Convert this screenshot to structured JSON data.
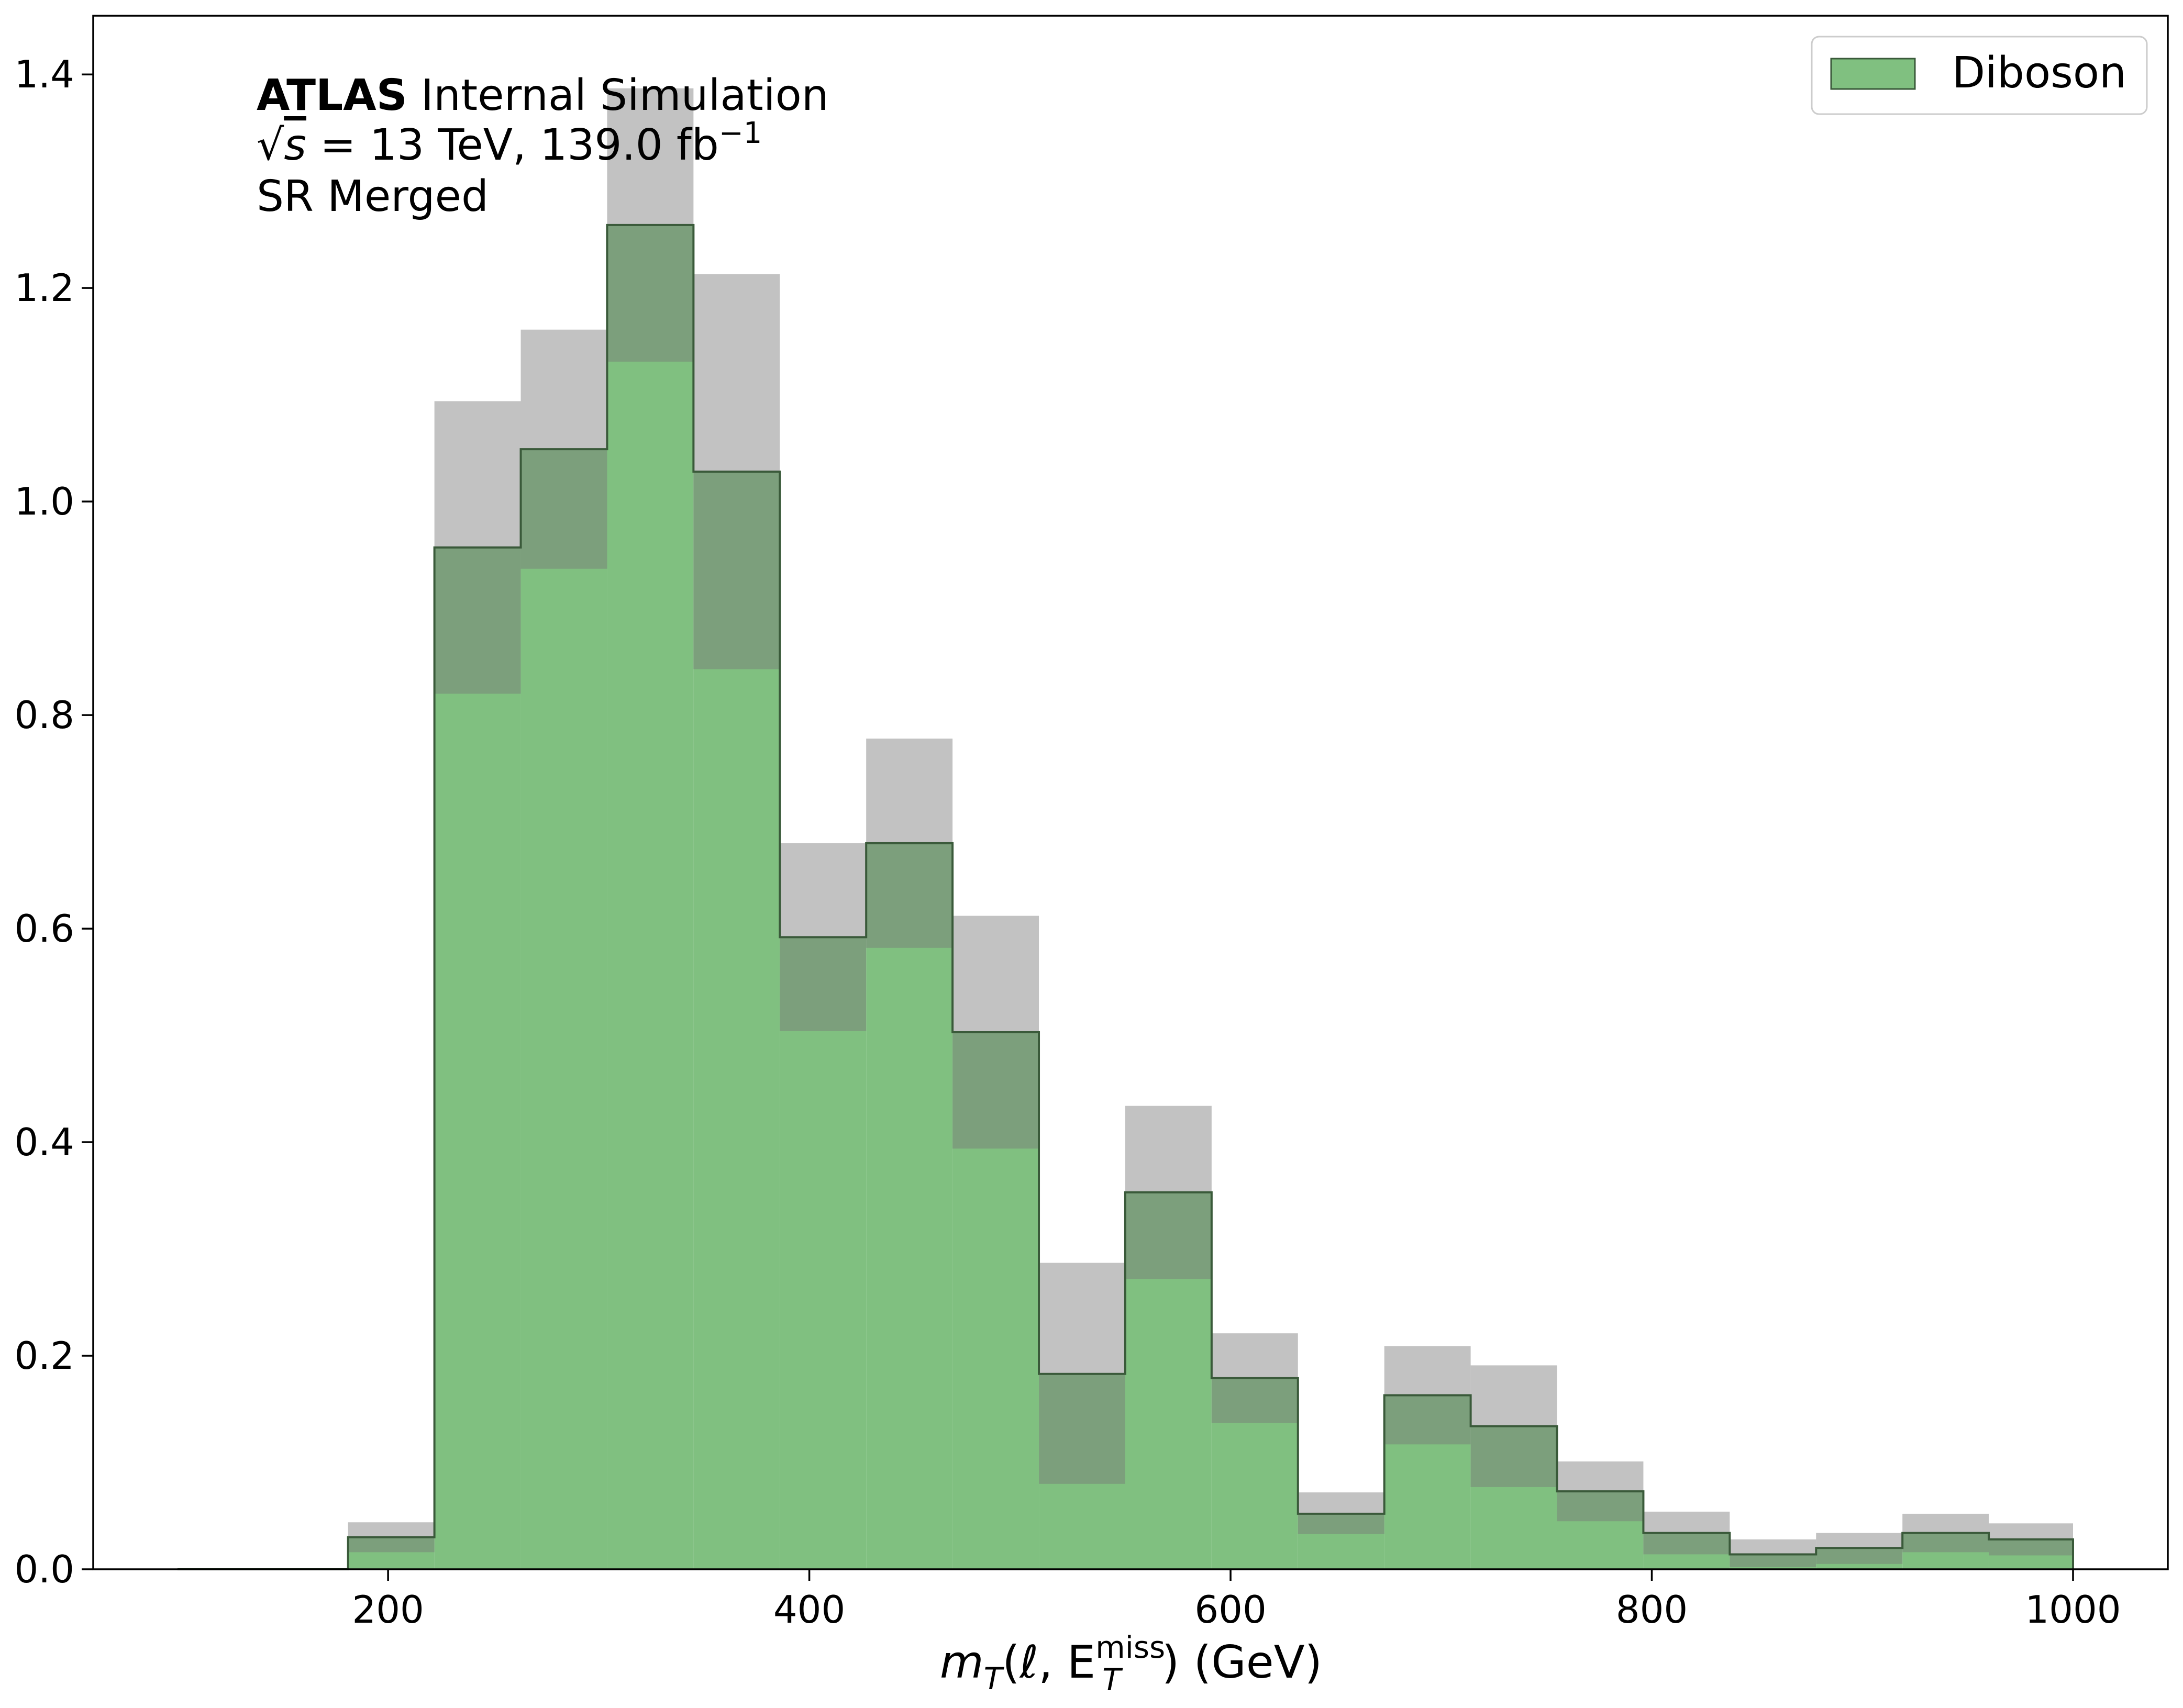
{
  "chart_data": {
    "type": "bar",
    "subtype": "stepped-histogram-with-uncertainty-band",
    "xlabel_parts": {
      "m": "m",
      "m_sub": "T",
      "open": "(ℓ, E",
      "e_sup": "miss",
      "e_sub": "T",
      "close": ") (GeV)"
    },
    "ylabel": "",
    "xlim": [
      60,
      1045
    ],
    "ylim": [
      0,
      1.455
    ],
    "xticks": [
      200,
      400,
      600,
      800,
      1000
    ],
    "xtick_labels": [
      "200",
      "400",
      "600",
      "800",
      "1000"
    ],
    "yticks": [
      0.0,
      0.2,
      0.4,
      0.6,
      0.8,
      1.0,
      1.2,
      1.4
    ],
    "ytick_labels": [
      "0.0",
      "0.2",
      "0.4",
      "0.6",
      "0.8",
      "1.0",
      "1.2",
      "1.4"
    ],
    "grid": false,
    "legend_position": "top-right",
    "colors": {
      "fill": "#80c080",
      "edge": "#3a5a3a",
      "band": "#777777",
      "band_opacity": 0.45
    },
    "annotation": {
      "line1_bold": "ATLAS",
      "line1_rest": " Internal Simulation",
      "line2_sqrt": "√",
      "line2_s": "s",
      "line2_rest": " = 13 TeV, 139.0 fb",
      "line2_sup": "−1",
      "line3": "SR Merged"
    },
    "series": [
      {
        "name": "Diboson",
        "bin_edges": [
          100,
          140,
          181,
          222,
          263,
          304,
          345,
          386,
          427,
          468,
          509,
          550,
          591,
          632,
          673,
          714,
          755,
          796,
          837,
          878,
          919,
          960,
          1000
        ],
        "values": [
          0.0,
          0.0,
          0.03,
          0.957,
          1.049,
          1.259,
          1.028,
          0.592,
          0.68,
          0.503,
          0.183,
          0.353,
          0.179,
          0.052,
          0.163,
          0.134,
          0.073,
          0.034,
          0.014,
          0.02,
          0.034,
          0.028
        ],
        "band_low": [
          0.0,
          0.0,
          0.016,
          0.82,
          0.937,
          1.131,
          0.843,
          0.504,
          0.582,
          0.394,
          0.08,
          0.272,
          0.137,
          0.033,
          0.117,
          0.077,
          0.045,
          0.014,
          0.002,
          0.005,
          0.016,
          0.013
        ],
        "band_high": [
          0.0,
          0.0,
          0.044,
          1.094,
          1.161,
          1.387,
          1.213,
          0.68,
          0.778,
          0.612,
          0.287,
          0.434,
          0.221,
          0.072,
          0.209,
          0.191,
          0.101,
          0.054,
          0.028,
          0.034,
          0.052,
          0.043
        ]
      }
    ]
  }
}
